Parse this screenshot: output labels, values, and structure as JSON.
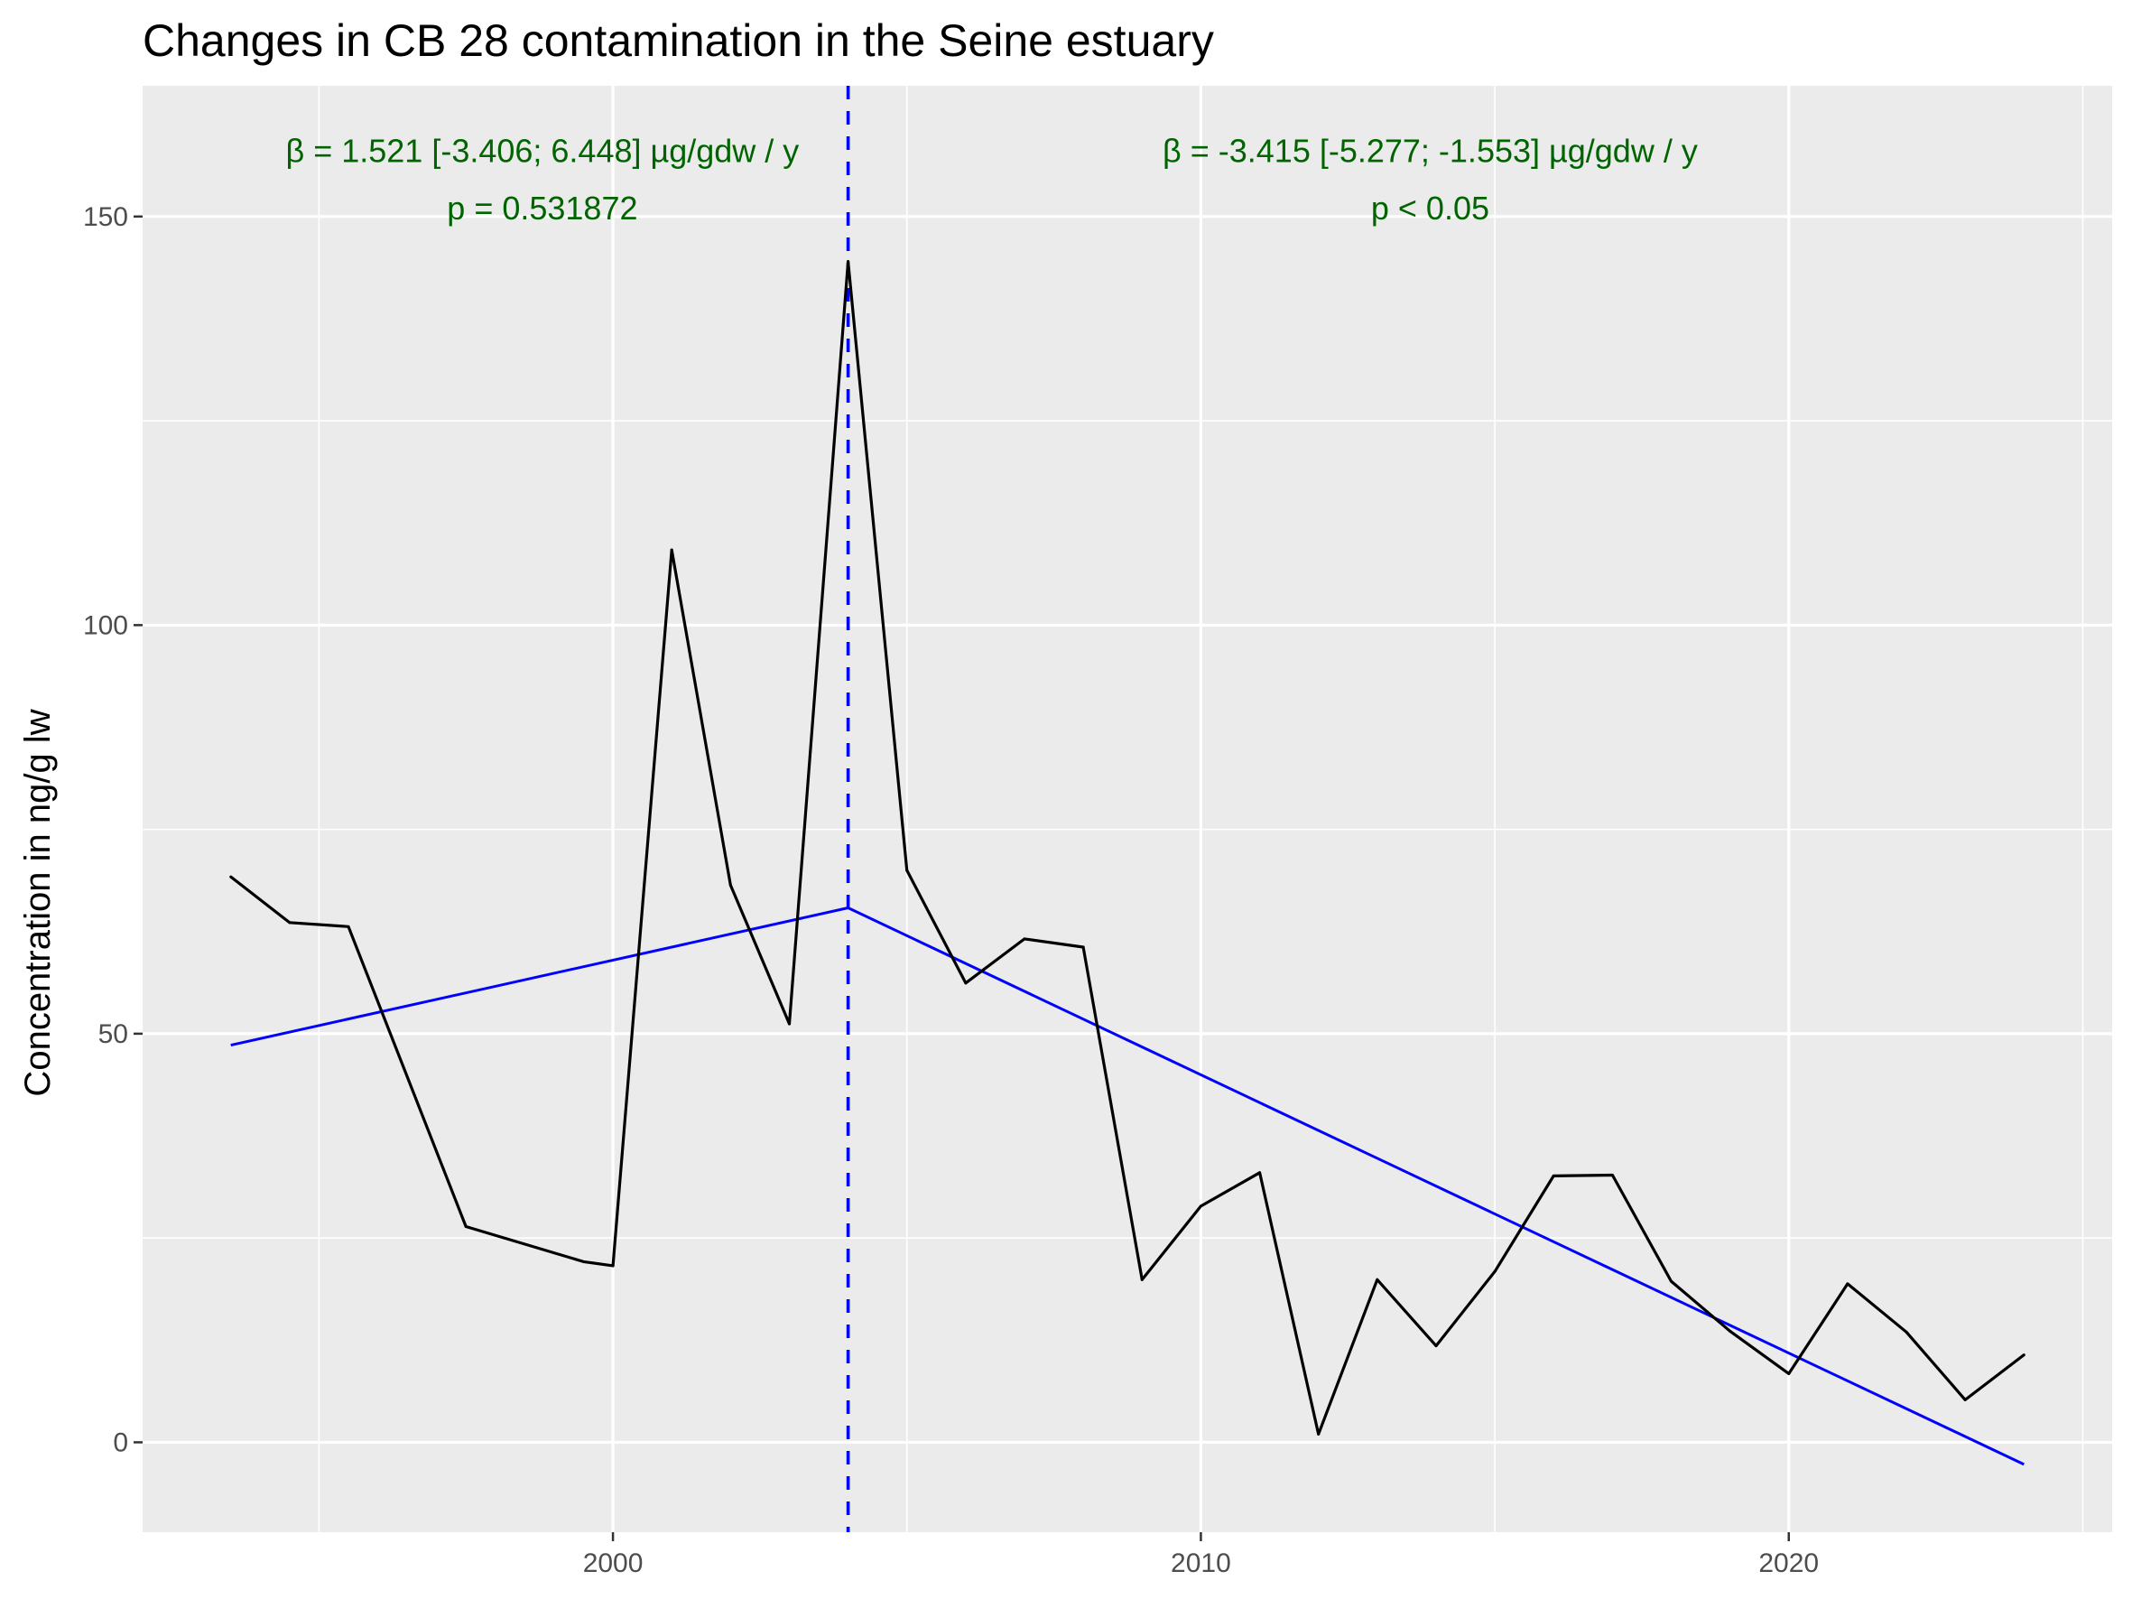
{
  "chart_data": {
    "type": "line",
    "title": "Changes in CB 28 contamination in the Seine estuary",
    "xlabel": "",
    "ylabel": "Concentration in ng/g lw",
    "xlim": [
      1992.0,
      2025.5
    ],
    "ylim": [
      -11,
      166
    ],
    "x_ticks": [
      2000,
      2010,
      2020
    ],
    "y_ticks": [
      0,
      50,
      100,
      150
    ],
    "grid": true,
    "breakpoint": 2004,
    "colors": {
      "panel": "#ebebeb",
      "grid": "#ffffff",
      "series": "#000000",
      "trend": "#0000ff",
      "annotation": "#006400"
    },
    "series": [
      {
        "x": [
          1993.5,
          1994.5,
          1995.5,
          1997.5,
          1999.5,
          2000,
          2001,
          2002,
          2003,
          2004,
          2005,
          2006,
          2007,
          2008,
          2009,
          2010,
          2011,
          2012,
          2013,
          2014,
          2015,
          2016,
          2017,
          2018,
          2019,
          2020,
          2021,
          2022,
          2023,
          2024
        ],
        "values": [
          69.2,
          63.6,
          63.1,
          26.4,
          22.1,
          21.6,
          109.2,
          68.2,
          51.2,
          144.5,
          70.0,
          56.2,
          61.6,
          60.6,
          19.9,
          28.9,
          33.0,
          1.0,
          19.9,
          11.8,
          20.9,
          32.6,
          32.7,
          19.7,
          13.6,
          8.4,
          19.4,
          13.5,
          5.2,
          10.7
        ]
      }
    ],
    "trend_segments": [
      {
        "x": [
          1993.5,
          2004
        ],
        "values": [
          48.6,
          65.4
        ]
      },
      {
        "x": [
          2004,
          2024
        ],
        "values": [
          65.4,
          -2.7
        ]
      }
    ],
    "annotations": [
      {
        "lines": [
          "β = 1.521 [-3.406; 6.448] µg/gdw / y",
          "p = 0.531872"
        ],
        "x": 1998.8,
        "y": [
          158,
          151
        ]
      },
      {
        "lines": [
          "β = -3.415 [-5.277; -1.553] µg/gdw / y",
          "p < 0.05"
        ],
        "x": 2013.9,
        "y": [
          158,
          151
        ]
      }
    ]
  }
}
